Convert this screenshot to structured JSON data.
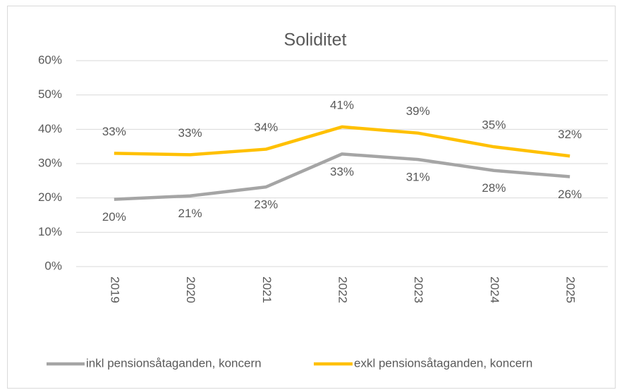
{
  "chart_data": {
    "type": "line",
    "title": "Soliditet",
    "categories": [
      "2019",
      "2020",
      "2021",
      "2022",
      "2023",
      "2024",
      "2025"
    ],
    "series": [
      {
        "name": "inkl pensionsåtaganden, koncern",
        "color": "#a5a5a5",
        "values": [
          19.6,
          20.6,
          23.2,
          32.8,
          31.2,
          28.0,
          26.2
        ],
        "value_labels": [
          "20%",
          "21%",
          "23%",
          "33%",
          "31%",
          "28%",
          "26%"
        ]
      },
      {
        "name": "exkl pensionsåtaganden, koncern",
        "color": "#ffc000",
        "values": [
          33.0,
          32.6,
          34.2,
          40.7,
          38.9,
          34.9,
          32.2
        ],
        "value_labels": [
          "33%",
          "33%",
          "34%",
          "41%",
          "39%",
          "35%",
          "32%"
        ]
      }
    ],
    "ylim": [
      0,
      60
    ],
    "yticks": [
      {
        "value": 0,
        "label": "0%"
      },
      {
        "value": 10,
        "label": "10%"
      },
      {
        "value": 20,
        "label": "20%"
      },
      {
        "value": 30,
        "label": "30%"
      },
      {
        "value": 40,
        "label": "40%"
      },
      {
        "value": 50,
        "label": "50%"
      },
      {
        "value": 60,
        "label": "60%"
      }
    ],
    "grid": true,
    "legend": "bottom"
  }
}
